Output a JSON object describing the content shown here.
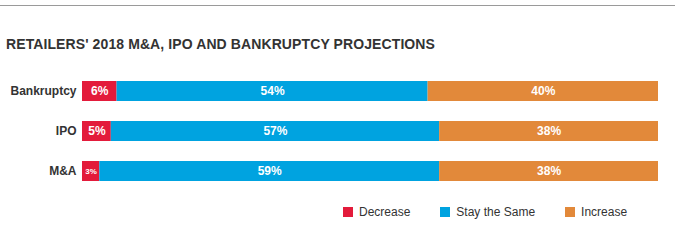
{
  "chart_data": {
    "type": "bar",
    "title": "RETAILERS' 2018 M&A, IPO AND BANKRUPTCY PROJECTIONS",
    "orientation": "horizontal",
    "stacked": true,
    "categories": [
      "Bankruptcy",
      "IPO",
      "M&A"
    ],
    "series": [
      {
        "name": "Decrease",
        "color": "#e31b3b",
        "values": [
          6,
          5,
          3
        ],
        "value_labels": [
          "6%",
          "5%",
          "3%"
        ]
      },
      {
        "name": "Stay the Same",
        "color": "#00a3e0",
        "values": [
          54,
          57,
          59
        ],
        "value_labels": [
          "54%",
          "57%",
          "59%"
        ]
      },
      {
        "name": "Increase",
        "color": "#e2893a",
        "values": [
          40,
          38,
          38
        ],
        "value_labels": [
          "40%",
          "38%",
          "38%"
        ]
      }
    ],
    "xlim": [
      0,
      100
    ],
    "data_labels": true,
    "tick_labels": "y",
    "legend": "bottom"
  }
}
